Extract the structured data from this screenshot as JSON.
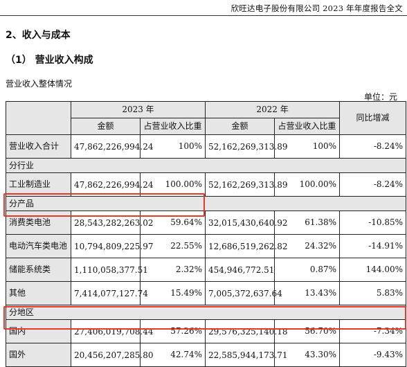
{
  "header": {
    "title": "欣旺达电子股份有限公司 2023 年年度报告全文"
  },
  "section_title": "2、收入与成本",
  "subsection_title": "（1） 营业收入构成",
  "table_caption": "营业收入整体情况",
  "unit": "单位：元",
  "table": {
    "year_2023": "2023 年",
    "year_2022": "2022 年",
    "yoy": "同比增减",
    "amount": "金额",
    "share": "占营业收入比重",
    "total": {
      "label": "营业收入合计",
      "amt2023": "47,862,226,994.24",
      "share2023": "100%",
      "amt2022": "52,162,269,313.89",
      "share2022": "100%",
      "yoy": "-8.24%"
    },
    "group_industry": "分行业",
    "industry": {
      "label": "工业制造业",
      "amt2023": "47,862,226,994.24",
      "share2023": "100.00%",
      "amt2022": "52,162,269,313.89",
      "share2022": "100.00%",
      "yoy": "-8.24%"
    },
    "group_product": "分产品",
    "products": [
      {
        "label": "消费类电池",
        "amt2023": "28,543,282,263.02",
        "share2023": "59.64%",
        "amt2022": "32,015,430,640.92",
        "share2022": "61.38%",
        "yoy": "-10.85%"
      },
      {
        "label": "电动汽车类电池",
        "amt2023": "10,794,809,225.97",
        "share2023": "22.55%",
        "amt2022": "12,686,519,262.82",
        "share2022": "24.32%",
        "yoy": "-14.91%"
      },
      {
        "label": "储能系统类",
        "amt2023": "1,110,058,377.51",
        "share2023": "2.32%",
        "amt2022": "454,946,772.51",
        "share2022": "0.87%",
        "yoy": "144.00%"
      },
      {
        "label": "其他",
        "amt2023": "7,414,077,127.74",
        "share2023": "15.49%",
        "amt2022": "7,005,372,637.64",
        "share2022": "13.43%",
        "yoy": "5.83%"
      }
    ],
    "group_region": "分地区",
    "regions": [
      {
        "label": "国内",
        "amt2023": "27,406,019,708.44",
        "share2023": "57.26%",
        "amt2022": "29,576,325,140.18",
        "share2022": "56.70%",
        "yoy": "-7.34%"
      },
      {
        "label": "国外",
        "amt2023": "20,456,207,285.80",
        "share2023": "42.74%",
        "amt2022": "22,585,944,173.71",
        "share2022": "43.30%",
        "yoy": "-9.43%"
      }
    ]
  },
  "highlight_color": "#e03a2a"
}
